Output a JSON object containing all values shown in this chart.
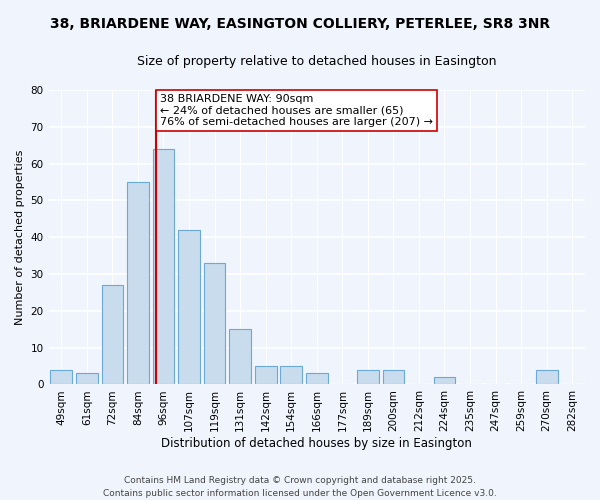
{
  "title1": "38, BRIARDENE WAY, EASINGTON COLLIERY, PETERLEE, SR8 3NR",
  "title2": "Size of property relative to detached houses in Easington",
  "xlabel": "Distribution of detached houses by size in Easington",
  "ylabel": "Number of detached properties",
  "bar_labels": [
    "49sqm",
    "61sqm",
    "72sqm",
    "84sqm",
    "96sqm",
    "107sqm",
    "119sqm",
    "131sqm",
    "142sqm",
    "154sqm",
    "166sqm",
    "177sqm",
    "189sqm",
    "200sqm",
    "212sqm",
    "224sqm",
    "235sqm",
    "247sqm",
    "259sqm",
    "270sqm",
    "282sqm"
  ],
  "bar_values": [
    4,
    3,
    27,
    55,
    64,
    42,
    33,
    15,
    5,
    5,
    3,
    0,
    4,
    4,
    0,
    2,
    0,
    0,
    0,
    4,
    0
  ],
  "bar_color": "#c8dcee",
  "bar_edge_color": "#6aaad4",
  "vline_color": "#cc0000",
  "annotation_text": "38 BRIARDENE WAY: 90sqm\n← 24% of detached houses are smaller (65)\n76% of semi-detached houses are larger (207) →",
  "annotation_box_color": "#ffffff",
  "annotation_box_edge": "#cc0000",
  "ylim": [
    0,
    80
  ],
  "yticks": [
    0,
    10,
    20,
    30,
    40,
    50,
    60,
    70,
    80
  ],
  "background_color": "#f0f4fc",
  "grid_color": "#dde8f5",
  "footer_line1": "Contains HM Land Registry data © Crown copyright and database right 2025.",
  "footer_line2": "Contains public sector information licensed under the Open Government Licence v3.0.",
  "title1_fontsize": 10,
  "title2_fontsize": 9,
  "xlabel_fontsize": 8.5,
  "ylabel_fontsize": 8,
  "tick_fontsize": 7.5,
  "annotation_fontsize": 8,
  "footer_fontsize": 6.5,
  "vline_x_idx": 3.72
}
